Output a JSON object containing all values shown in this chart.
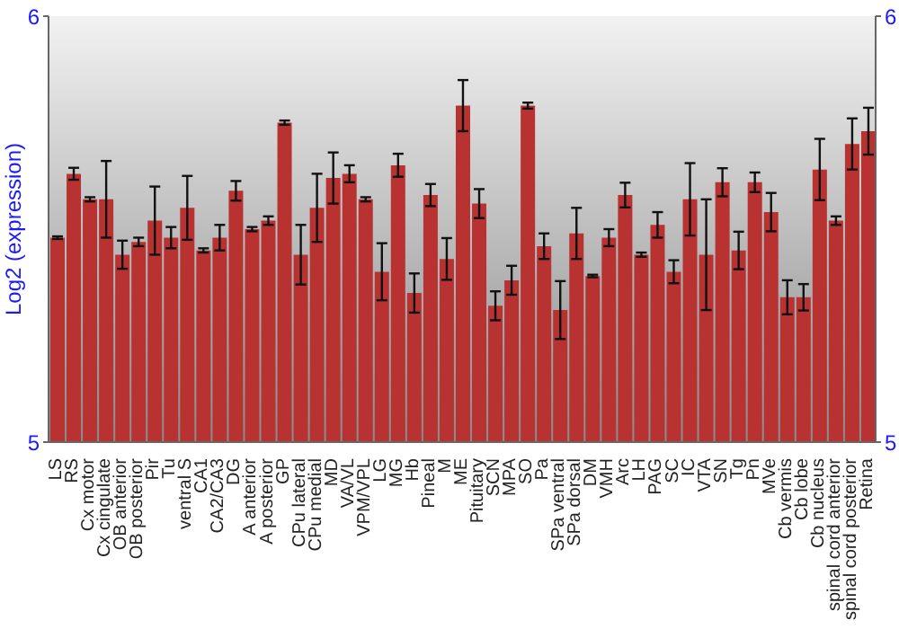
{
  "chart_data": {
    "type": "bar",
    "ylabel": "Log2 (expression)",
    "categories": [
      "LS",
      "RS",
      "Cx motor",
      "Cx cingulate",
      "OB anterior",
      "OB posterior",
      "Pir",
      "Tu",
      "ventral S",
      "CA1",
      "CA2/CA3",
      "DG",
      "A anterior",
      "A posterior",
      "GP",
      "CPu lateral",
      "CPu medial",
      "MD",
      "VA/VL",
      "VPM/VPL",
      "LG",
      "MG",
      "Hb",
      "Pineal",
      "M",
      "ME",
      "Pituitary",
      "SCN",
      "MPA",
      "SO",
      "Pa",
      "SPa ventral",
      "SPa dorsal",
      "DM",
      "VMH",
      "Arc",
      "LH",
      "PAG",
      "SC",
      "IC",
      "VTA",
      "SN",
      "Tg",
      "Pn",
      "MVe",
      "Cb vermis",
      "Cb lobe",
      "Cb nucleus",
      "spinal cord anterior",
      "spinal cord posterior",
      "Retina"
    ],
    "values": [
      5.48,
      5.63,
      5.57,
      5.57,
      5.44,
      5.47,
      5.52,
      5.48,
      5.55,
      5.45,
      5.48,
      5.59,
      5.5,
      5.52,
      5.75,
      5.44,
      5.55,
      5.62,
      5.63,
      5.57,
      5.4,
      5.65,
      5.35,
      5.58,
      5.43,
      5.79,
      5.56,
      5.32,
      5.38,
      5.79,
      5.46,
      5.31,
      5.49,
      5.39,
      5.48,
      5.58,
      5.44,
      5.51,
      5.4,
      5.57,
      5.44,
      5.61,
      5.45,
      5.61,
      5.54,
      5.34,
      5.34,
      5.64,
      5.52,
      5.7,
      5.73
    ],
    "errors": [
      0.003,
      0.014,
      0.005,
      0.09,
      0.033,
      0.01,
      0.08,
      0.025,
      0.075,
      0.005,
      0.03,
      0.023,
      0.005,
      0.01,
      0.005,
      0.07,
      0.08,
      0.06,
      0.02,
      0.005,
      0.067,
      0.027,
      0.046,
      0.026,
      0.049,
      0.06,
      0.034,
      0.034,
      0.034,
      0.007,
      0.03,
      0.068,
      0.06,
      0.003,
      0.02,
      0.029,
      0.005,
      0.03,
      0.027,
      0.085,
      0.13,
      0.033,
      0.044,
      0.023,
      0.045,
      0.04,
      0.031,
      0.072,
      0.01,
      0.06,
      0.055
    ],
    "color": "#b83232",
    "ylim": [
      5,
      6
    ],
    "yticks": [
      5,
      6
    ],
    "y2lim": [
      5,
      6
    ],
    "y2ticks": [
      5,
      6
    ]
  }
}
